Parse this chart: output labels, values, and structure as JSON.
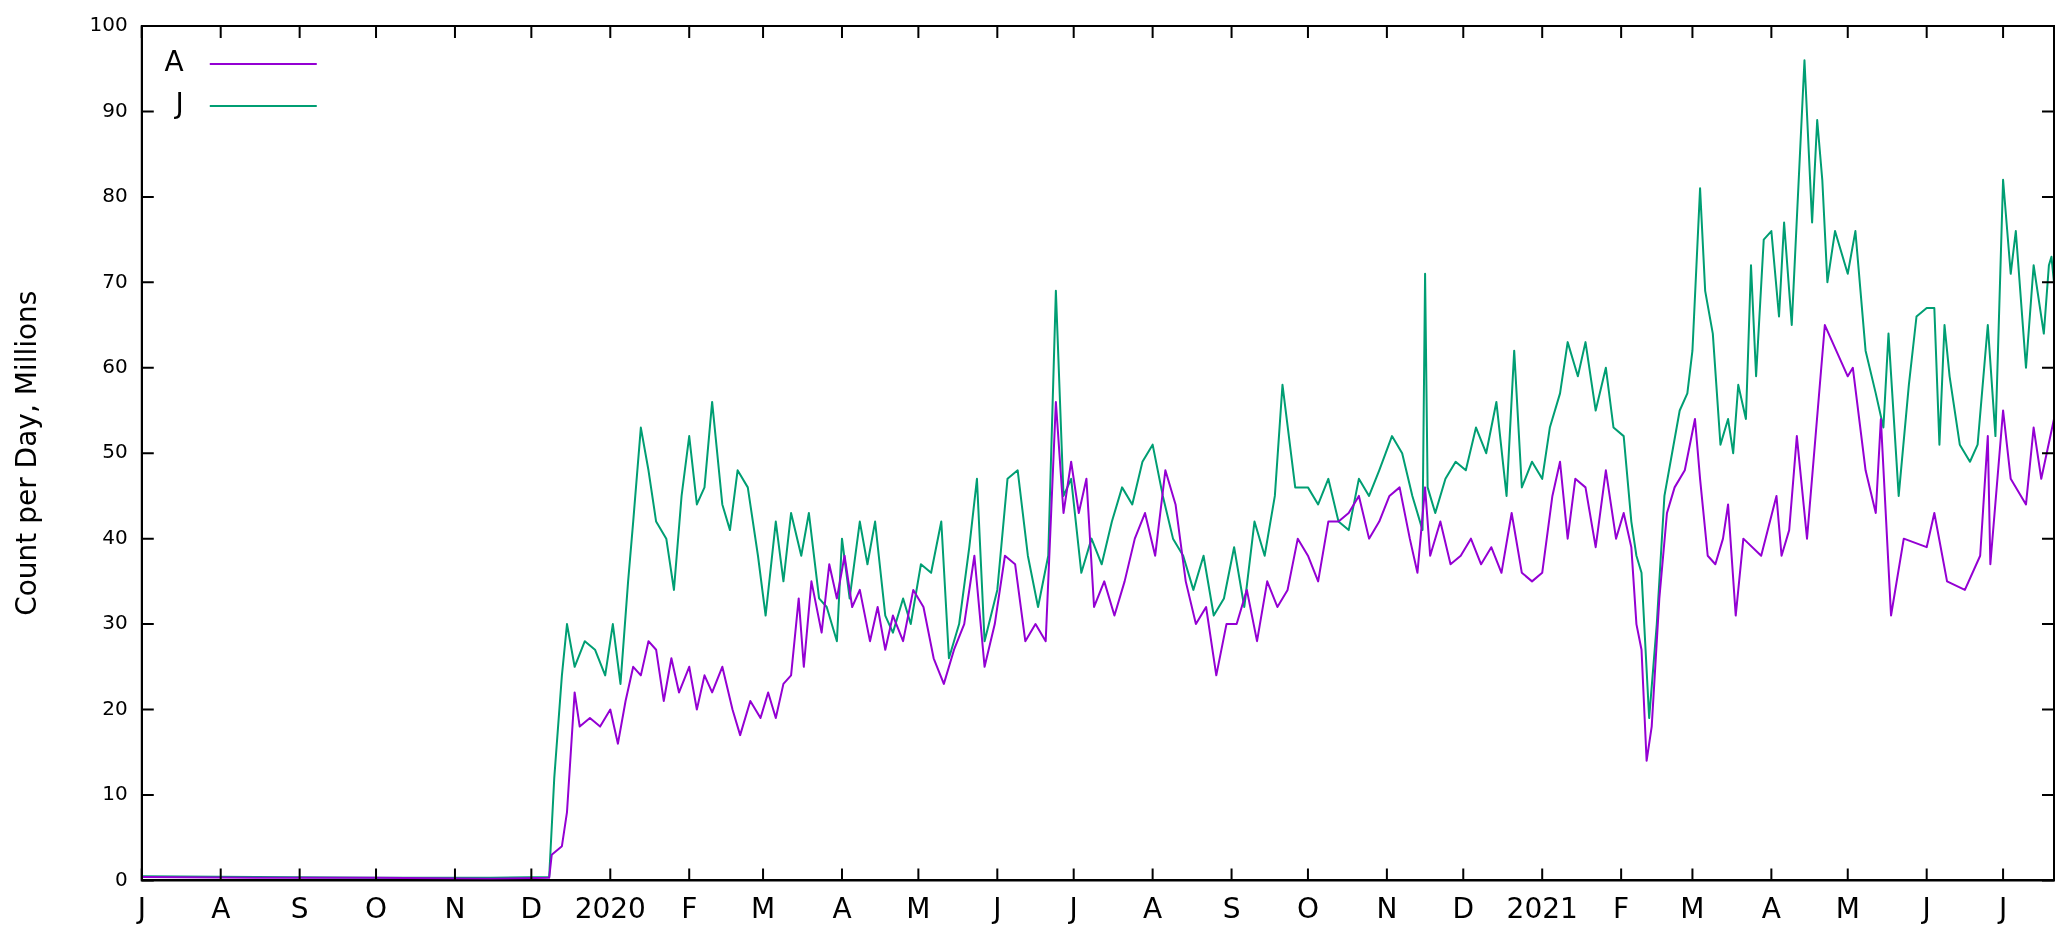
{
  "chart_data": {
    "type": "line",
    "ylabel": "Count per Day, Millions",
    "xlim": [
      "2019-07-01",
      "2021-07-21"
    ],
    "xticks": [
      {
        "value": "2019-07-01",
        "label": "J"
      },
      {
        "value": "2019-08-01",
        "label": "A"
      },
      {
        "value": "2019-09-01",
        "label": "S"
      },
      {
        "value": "2019-10-01",
        "label": "O"
      },
      {
        "value": "2019-11-01",
        "label": "N"
      },
      {
        "value": "2019-12-01",
        "label": "D"
      },
      {
        "value": "2020-01-01",
        "label": "2020"
      },
      {
        "value": "2020-02-01",
        "label": "F"
      },
      {
        "value": "2020-03-01",
        "label": "M"
      },
      {
        "value": "2020-04-01",
        "label": "A"
      },
      {
        "value": "2020-05-01",
        "label": "M"
      },
      {
        "value": "2020-06-01",
        "label": "J"
      },
      {
        "value": "2020-07-01",
        "label": "J"
      },
      {
        "value": "2020-08-01",
        "label": "A"
      },
      {
        "value": "2020-09-01",
        "label": "S"
      },
      {
        "value": "2020-10-01",
        "label": "O"
      },
      {
        "value": "2020-11-01",
        "label": "N"
      },
      {
        "value": "2020-12-01",
        "label": "D"
      },
      {
        "value": "2021-01-01",
        "label": "2021"
      },
      {
        "value": "2021-02-01",
        "label": "F"
      },
      {
        "value": "2021-03-01",
        "label": "M"
      },
      {
        "value": "2021-04-01",
        "label": "A"
      },
      {
        "value": "2021-05-01",
        "label": "M"
      },
      {
        "value": "2021-06-01",
        "label": "J"
      },
      {
        "value": "2021-07-01",
        "label": "J"
      }
    ],
    "ylim": [
      0,
      100
    ],
    "yticks": [
      0,
      10,
      20,
      30,
      40,
      50,
      60,
      70,
      80,
      90,
      100
    ],
    "grid": false,
    "legend": "top left",
    "marker": "none",
    "line_style": "solid",
    "series": [
      {
        "name": "A",
        "color": "#9400d3",
        "x": [
          "2019-07-01",
          "2019-08-15",
          "2019-10-01",
          "2019-11-15",
          "2019-12-08",
          "2019-12-09",
          "2019-12-13",
          "2019-12-15",
          "2019-12-18",
          "2019-12-20",
          "2019-12-24",
          "2019-12-28",
          "2020-01-01",
          "2020-01-04",
          "2020-01-07",
          "2020-01-10",
          "2020-01-13",
          "2020-01-16",
          "2020-01-19",
          "2020-01-22",
          "2020-01-25",
          "2020-01-28",
          "2020-02-01",
          "2020-02-04",
          "2020-02-07",
          "2020-02-10",
          "2020-02-14",
          "2020-02-18",
          "2020-02-21",
          "2020-02-25",
          "2020-02-29",
          "2020-03-03",
          "2020-03-06",
          "2020-03-09",
          "2020-03-12",
          "2020-03-15",
          "2020-03-17",
          "2020-03-20",
          "2020-03-24",
          "2020-03-27",
          "2020-03-30",
          "2020-04-02",
          "2020-04-05",
          "2020-04-08",
          "2020-04-12",
          "2020-04-15",
          "2020-04-18",
          "2020-04-21",
          "2020-04-25",
          "2020-04-29",
          "2020-05-03",
          "2020-05-07",
          "2020-05-11",
          "2020-05-15",
          "2020-05-19",
          "2020-05-23",
          "2020-05-27",
          "2020-05-31",
          "2020-06-04",
          "2020-06-08",
          "2020-06-12",
          "2020-06-16",
          "2020-06-20",
          "2020-06-24",
          "2020-06-27",
          "2020-06-30",
          "2020-07-03",
          "2020-07-06",
          "2020-07-09",
          "2020-07-13",
          "2020-07-17",
          "2020-07-21",
          "2020-07-25",
          "2020-07-29",
          "2020-08-02",
          "2020-08-06",
          "2020-08-10",
          "2020-08-14",
          "2020-08-18",
          "2020-08-22",
          "2020-08-26",
          "2020-08-30",
          "2020-09-03",
          "2020-09-07",
          "2020-09-11",
          "2020-09-15",
          "2020-09-19",
          "2020-09-23",
          "2020-09-27",
          "2020-10-01",
          "2020-10-05",
          "2020-10-09",
          "2020-10-13",
          "2020-10-17",
          "2020-10-21",
          "2020-10-25",
          "2020-10-29",
          "2020-11-02",
          "2020-11-06",
          "2020-11-10",
          "2020-11-13",
          "2020-11-16",
          "2020-11-18",
          "2020-11-22",
          "2020-11-26",
          "2020-11-30",
          "2020-12-04",
          "2020-12-08",
          "2020-12-12",
          "2020-12-16",
          "2020-12-20",
          "2020-12-24",
          "2020-12-28",
          "2021-01-01",
          "2021-01-05",
          "2021-01-08",
          "2021-01-11",
          "2021-01-14",
          "2021-01-18",
          "2021-01-22",
          "2021-01-26",
          "2021-01-30",
          "2021-02-02",
          "2021-02-05",
          "2021-02-07",
          "2021-02-09",
          "2021-02-11",
          "2021-02-13",
          "2021-02-16",
          "2021-02-19",
          "2021-02-22",
          "2021-02-26",
          "2021-03-02",
          "2021-03-04",
          "2021-03-07",
          "2021-03-10",
          "2021-03-13",
          "2021-03-15",
          "2021-03-18",
          "2021-03-21",
          "2021-03-28",
          "2021-04-03",
          "2021-04-05",
          "2021-04-08",
          "2021-04-11",
          "2021-04-15",
          "2021-04-22",
          "2021-05-01",
          "2021-05-03",
          "2021-05-08",
          "2021-05-12",
          "2021-05-14",
          "2021-05-18",
          "2021-05-23",
          "2021-06-01",
          "2021-06-04",
          "2021-06-09",
          "2021-06-16",
          "2021-06-22",
          "2021-06-25",
          "2021-06-26",
          "2021-07-01",
          "2021-07-04",
          "2021-07-10",
          "2021-07-13",
          "2021-07-16",
          "2021-07-21"
        ],
        "values": [
          0.4,
          0.3,
          0.3,
          0.2,
          0.3,
          3,
          4,
          8,
          22,
          18,
          19,
          18,
          20,
          16,
          21,
          25,
          24,
          28,
          27,
          21,
          26,
          22,
          25,
          20,
          24,
          22,
          25,
          20,
          17,
          21,
          19,
          22,
          19,
          23,
          24,
          33,
          25,
          35,
          29,
          37,
          33,
          38,
          32,
          34,
          28,
          32,
          27,
          31,
          28,
          34,
          32,
          26,
          23,
          27,
          30,
          38,
          25,
          30,
          38,
          37,
          28,
          30,
          28,
          56,
          43,
          49,
          43,
          47,
          32,
          35,
          31,
          35,
          40,
          43,
          38,
          48,
          44,
          35,
          30,
          32,
          24,
          30,
          30,
          34,
          28,
          35,
          32,
          34,
          40,
          38,
          35,
          42,
          42,
          43,
          45,
          40,
          42,
          45,
          46,
          40,
          36,
          46,
          38,
          42,
          37,
          38,
          40,
          37,
          39,
          36,
          43,
          36,
          35,
          36,
          45,
          49,
          40,
          47,
          46,
          39,
          48,
          40,
          43,
          39,
          30,
          27,
          14,
          18,
          33,
          43,
          46,
          48,
          54,
          47,
          38,
          37,
          40,
          44,
          31,
          40,
          38,
          45,
          38,
          41,
          52,
          40,
          65,
          59,
          60,
          48,
          43,
          54,
          31,
          40,
          39,
          43,
          35,
          34,
          38,
          52,
          37,
          55,
          47,
          44,
          53,
          47,
          54
        ]
      },
      {
        "name": "J",
        "color": "#009e73",
        "x": [
          "2019-07-01",
          "2019-08-15",
          "2019-10-01",
          "2019-11-15",
          "2019-12-08",
          "2019-12-10",
          "2019-12-13",
          "2019-12-15",
          "2019-12-18",
          "2019-12-22",
          "2019-12-26",
          "2019-12-30",
          "2020-01-02",
          "2020-01-05",
          "2020-01-08",
          "2020-01-10",
          "2020-01-13",
          "2020-01-16",
          "2020-01-19",
          "2020-01-23",
          "2020-01-26",
          "2020-01-29",
          "2020-02-01",
          "2020-02-04",
          "2020-02-07",
          "2020-02-10",
          "2020-02-14",
          "2020-02-17",
          "2020-02-20",
          "2020-02-24",
          "2020-02-28",
          "2020-03-02",
          "2020-03-06",
          "2020-03-09",
          "2020-03-12",
          "2020-03-16",
          "2020-03-19",
          "2020-03-23",
          "2020-03-26",
          "2020-03-30",
          "2020-04-01",
          "2020-04-04",
          "2020-04-08",
          "2020-04-11",
          "2020-04-14",
          "2020-04-18",
          "2020-04-21",
          "2020-04-25",
          "2020-04-28",
          "2020-05-02",
          "2020-05-06",
          "2020-05-10",
          "2020-05-13",
          "2020-05-17",
          "2020-05-21",
          "2020-05-24",
          "2020-05-27",
          "2020-06-01",
          "2020-06-05",
          "2020-06-09",
          "2020-06-13",
          "2020-06-17",
          "2020-06-21",
          "2020-06-24",
          "2020-06-27",
          "2020-06-30",
          "2020-07-04",
          "2020-07-08",
          "2020-07-12",
          "2020-07-16",
          "2020-07-20",
          "2020-07-24",
          "2020-07-28",
          "2020-08-01",
          "2020-08-05",
          "2020-08-09",
          "2020-08-13",
          "2020-08-17",
          "2020-08-21",
          "2020-08-25",
          "2020-08-29",
          "2020-09-02",
          "2020-09-06",
          "2020-09-10",
          "2020-09-14",
          "2020-09-18",
          "2020-09-21",
          "2020-09-26",
          "2020-10-01",
          "2020-10-05",
          "2020-10-09",
          "2020-10-13",
          "2020-10-17",
          "2020-10-21",
          "2020-10-25",
          "2020-10-29",
          "2020-11-03",
          "2020-11-07",
          "2020-11-11",
          "2020-11-15",
          "2020-11-16",
          "2020-11-17",
          "2020-11-20",
          "2020-11-24",
          "2020-11-28",
          "2020-12-02",
          "2020-12-06",
          "2020-12-10",
          "2020-12-14",
          "2020-12-18",
          "2020-12-21",
          "2020-12-24",
          "2020-12-28",
          "2021-01-01",
          "2021-01-04",
          "2021-01-08",
          "2021-01-11",
          "2021-01-15",
          "2021-01-18",
          "2021-01-22",
          "2021-01-26",
          "2021-01-29",
          "2021-02-02",
          "2021-02-05",
          "2021-02-07",
          "2021-02-09",
          "2021-02-12",
          "2021-02-15",
          "2021-02-18",
          "2021-02-21",
          "2021-02-24",
          "2021-02-27",
          "2021-03-01",
          "2021-03-04",
          "2021-03-06",
          "2021-03-09",
          "2021-03-12",
          "2021-03-15",
          "2021-03-17",
          "2021-03-19",
          "2021-03-22",
          "2021-03-24",
          "2021-03-26",
          "2021-03-29",
          "2021-04-01",
          "2021-04-04",
          "2021-04-06",
          "2021-04-09",
          "2021-04-14",
          "2021-04-17",
          "2021-04-19",
          "2021-04-21",
          "2021-04-23",
          "2021-04-26",
          "2021-05-01",
          "2021-05-04",
          "2021-05-08",
          "2021-05-12",
          "2021-05-15",
          "2021-05-17",
          "2021-05-21",
          "2021-05-25",
          "2021-05-28",
          "2021-06-01",
          "2021-06-04",
          "2021-06-06",
          "2021-06-08",
          "2021-06-10",
          "2021-06-14",
          "2021-06-18",
          "2021-06-21",
          "2021-06-25",
          "2021-06-28",
          "2021-07-01",
          "2021-07-04",
          "2021-07-06",
          "2021-07-10",
          "2021-07-13",
          "2021-07-17",
          "2021-07-19",
          "2021-07-20",
          "2021-07-21"
        ],
        "values": [
          0.5,
          0.4,
          0.3,
          0.3,
          0.4,
          12,
          24,
          30,
          25,
          28,
          27,
          24,
          30,
          23,
          35,
          42,
          53,
          48,
          42,
          40,
          34,
          45,
          52,
          44,
          46,
          56,
          44,
          41,
          48,
          46,
          38,
          31,
          42,
          35,
          43,
          38,
          43,
          33,
          32,
          28,
          40,
          33,
          42,
          37,
          42,
          31,
          29,
          33,
          30,
          37,
          36,
          42,
          26,
          30,
          39,
          47,
          28,
          34,
          47,
          48,
          38,
          32,
          38,
          69,
          45,
          47,
          36,
          40,
          37,
          42,
          46,
          44,
          49,
          51,
          45,
          40,
          38,
          34,
          38,
          31,
          33,
          39,
          32,
          42,
          38,
          45,
          58,
          46,
          46,
          44,
          47,
          42,
          41,
          47,
          45,
          48,
          52,
          50,
          45,
          41,
          71,
          46,
          43,
          47,
          49,
          48,
          53,
          50,
          56,
          45,
          62,
          46,
          49,
          47,
          53,
          57,
          63,
          59,
          63,
          55,
          60,
          53,
          52,
          42,
          38,
          36,
          19,
          30,
          45,
          50,
          55,
          57,
          62,
          81,
          69,
          64,
          51,
          54,
          50,
          58,
          54,
          72,
          59,
          75,
          76,
          66,
          77,
          65,
          96,
          77,
          89,
          82,
          70,
          76,
          71,
          76,
          62,
          57,
          53,
          64,
          45,
          58,
          66,
          67,
          67,
          51,
          65,
          59,
          51,
          49,
          51,
          65,
          52,
          82,
          71,
          76,
          60,
          72,
          64,
          72,
          73,
          70
        ]
      }
    ]
  }
}
